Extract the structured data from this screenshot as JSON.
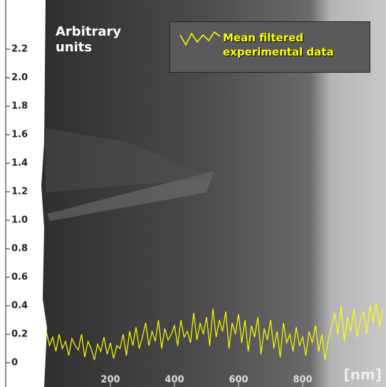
{
  "chart_data": {
    "type": "line",
    "y_label": "Arbitrary units",
    "x_label": "[nm]",
    "x": [
      0,
      10,
      20,
      30,
      40,
      50,
      60,
      70,
      80,
      90,
      100,
      110,
      120,
      130,
      140,
      150,
      160,
      170,
      180,
      190,
      200,
      210,
      220,
      230,
      240,
      250,
      260,
      270,
      280,
      290,
      300,
      310,
      320,
      330,
      340,
      350,
      360,
      370,
      380,
      390,
      400,
      410,
      420,
      430,
      440,
      450,
      460,
      470,
      480,
      490,
      500,
      510,
      520,
      530,
      540,
      550,
      560,
      570,
      580,
      590,
      600,
      610,
      620,
      630,
      640,
      650,
      660,
      670,
      680,
      690,
      700,
      710,
      720,
      730,
      740,
      750,
      760,
      770,
      780,
      790,
      800,
      810,
      820,
      830,
      840,
      850,
      860,
      870,
      880,
      890,
      900,
      910,
      920,
      930,
      940,
      950,
      960,
      970,
      980,
      990,
      1000,
      1010,
      1020,
      1030,
      1040,
      1050
    ],
    "series": [
      {
        "name": "Mean filtered experimental data",
        "color": "#ffff00",
        "values": [
          0.22,
          0.12,
          0.18,
          0.08,
          0.2,
          0.1,
          0.15,
          0.05,
          0.17,
          0.12,
          0.09,
          0.2,
          0.04,
          0.15,
          0.1,
          0.02,
          0.13,
          0.08,
          0.18,
          0.06,
          0.14,
          0.03,
          0.12,
          0.1,
          0.2,
          0.05,
          0.22,
          0.12,
          0.25,
          0.1,
          0.18,
          0.28,
          0.12,
          0.22,
          0.15,
          0.3,
          0.1,
          0.24,
          0.16,
          0.2,
          0.26,
          0.12,
          0.3,
          0.18,
          0.22,
          0.14,
          0.35,
          0.16,
          0.28,
          0.2,
          0.32,
          0.12,
          0.38,
          0.18,
          0.3,
          0.22,
          0.36,
          0.1,
          0.28,
          0.2,
          0.34,
          0.14,
          0.3,
          0.08,
          0.26,
          0.18,
          0.32,
          0.06,
          0.24,
          0.16,
          0.3,
          0.1,
          0.22,
          0.04,
          0.28,
          0.14,
          0.2,
          0.08,
          0.25,
          0.12,
          0.18,
          0.05,
          0.22,
          0.14,
          0.26,
          0.08,
          0.2,
          0.02,
          0.16,
          0.25,
          0.35,
          0.2,
          0.4,
          0.15,
          0.32,
          0.22,
          0.38,
          0.18,
          0.3,
          0.36,
          0.2,
          0.4,
          0.28,
          0.42,
          0.25,
          0.38
        ]
      }
    ],
    "xlim": [
      0,
      1060
    ],
    "ylim": [
      -0.17,
      2.545
    ],
    "xticks": [
      200,
      400,
      600,
      800
    ],
    "yticks": [
      0,
      0.2,
      0.4,
      0.6,
      0.8,
      {
        "value": 1,
        "label": "1.0"
      },
      1.2,
      1.4,
      1.6,
      1.8,
      {
        "value": 2,
        "label": "2.0"
      },
      2.2
    ],
    "legend": "top-right"
  }
}
